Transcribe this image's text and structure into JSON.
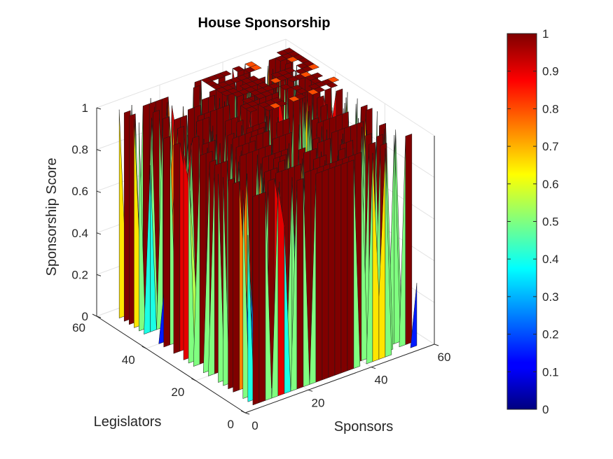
{
  "chart_data": {
    "type": "surface3d",
    "title": "House Sponsorship",
    "xlabel": "Sponsors",
    "ylabel": "Legislators",
    "zlabel": "Sponsorship Score",
    "xlim": [
      0,
      60
    ],
    "ylim": [
      0,
      60
    ],
    "zlim": [
      0,
      1
    ],
    "xticks": [
      "0",
      "20",
      "40",
      "60"
    ],
    "yticks": [
      "0",
      "20",
      "40",
      "60"
    ],
    "zticks": [
      "0",
      "0.2",
      "0.4",
      "0.6",
      "0.8",
      "1"
    ],
    "grid": true,
    "colormap": "jet",
    "colorbar": {
      "location": "right",
      "limits": [
        0,
        1
      ],
      "ticks": [
        "0",
        "0.1",
        "0.2",
        "0.3",
        "0.4",
        "0.5",
        "0.6",
        "0.7",
        "0.8",
        "0.9",
        "1"
      ]
    },
    "value_distribution": {
      "dominant_values": [
        0,
        1
      ],
      "occasional_values": [
        0.3,
        0.5,
        0.8
      ]
    }
  }
}
